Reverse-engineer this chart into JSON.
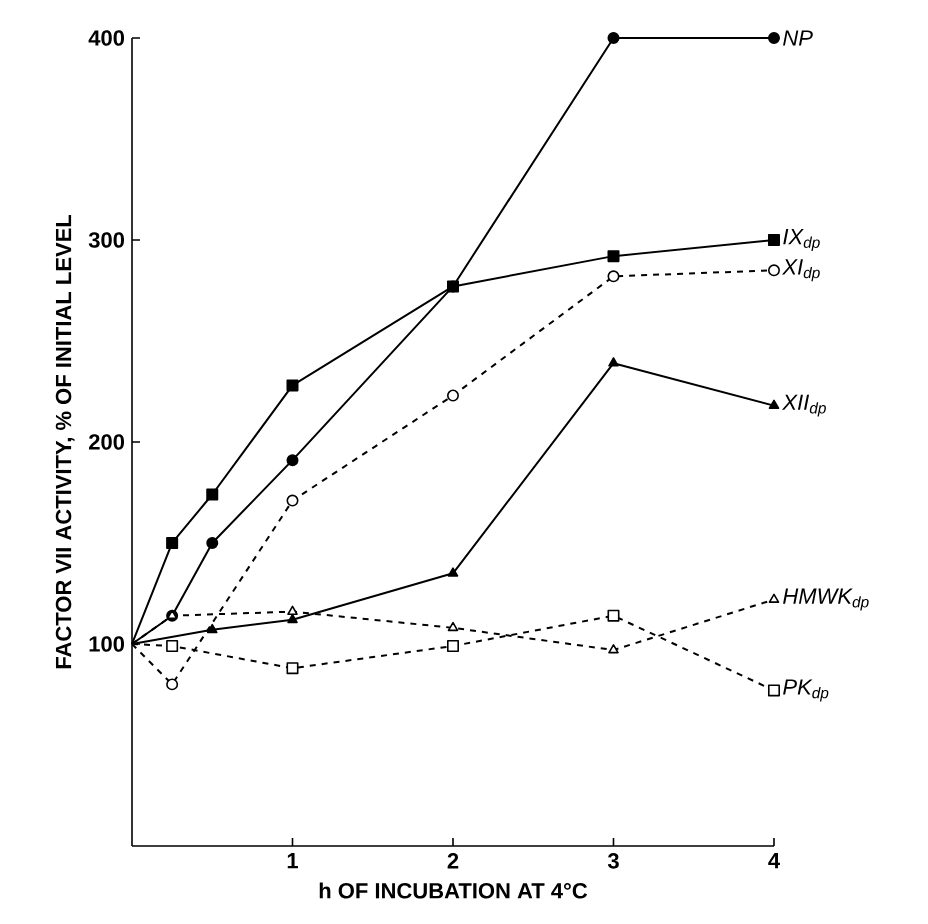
{
  "chart_data": {
    "type": "line",
    "xlabel": "h OF INCUBATION AT 4°C",
    "ylabel": "FACTOR VII ACTIVITY, % OF INITIAL LEVEL",
    "x": [
      0,
      0.25,
      0.5,
      1,
      2,
      3,
      4
    ],
    "xlim": [
      0,
      4
    ],
    "xticks": [
      1,
      2,
      3,
      4
    ],
    "ylim": [
      0,
      400
    ],
    "yticks": [
      100,
      200,
      300,
      400
    ],
    "grid": false,
    "legend": false,
    "series": [
      {
        "name": "NP",
        "color": "#000000",
        "marker": "circle",
        "line_style": "solid",
        "values": [
          100,
          114,
          150,
          191,
          277,
          400,
          400
        ]
      },
      {
        "name": "IX$_{dp}$",
        "color": "#000000",
        "marker": "square",
        "line_style": "solid",
        "values": [
          100,
          150,
          174,
          228,
          277,
          292,
          300
        ]
      },
      {
        "name": "XI$_{dp}$",
        "color": "#000000",
        "marker": "circle",
        "line_style": "dashed",
        "values": [
          100,
          80,
          null,
          171,
          223,
          282,
          285
        ]
      },
      {
        "name": "XII$_{dp}$",
        "color": "#000000",
        "marker": "triangle",
        "line_style": "solid",
        "values": [
          100,
          null,
          107,
          112,
          135,
          239,
          218
        ]
      },
      {
        "name": "HMWK$_{dp}$",
        "color": "#000000",
        "marker": "triangle",
        "line_style": "dashed",
        "values": [
          100,
          114,
          null,
          116,
          108,
          97,
          122
        ]
      },
      {
        "name": "PK$_{dp}$",
        "color": "#000000",
        "marker": "square",
        "line_style": "dashed",
        "values": [
          100,
          99,
          null,
          88,
          99,
          114,
          77
        ]
      }
    ]
  }
}
